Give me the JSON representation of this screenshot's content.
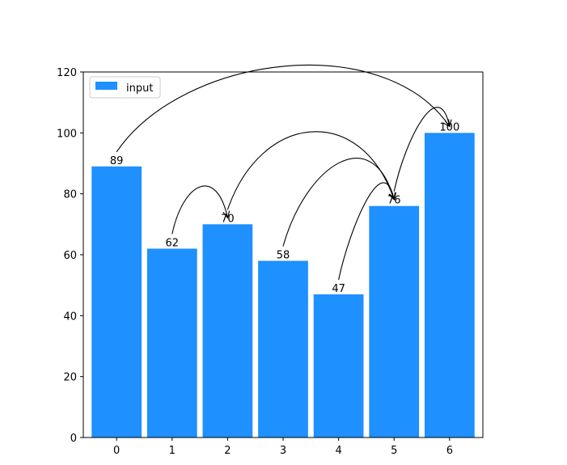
{
  "chart_data": {
    "type": "bar",
    "categories": [
      "0",
      "1",
      "2",
      "3",
      "4",
      "5",
      "6"
    ],
    "series": [
      {
        "name": "input",
        "values": [
          89,
          62,
          70,
          58,
          47,
          76,
          100
        ],
        "color": "#1e90ff"
      }
    ],
    "data_labels": [
      "89",
      "62",
      "70",
      "58",
      "47",
      "76",
      "100"
    ],
    "yticks": [
      "0",
      "20",
      "40",
      "60",
      "80",
      "100",
      "120"
    ],
    "ylim": [
      0,
      120
    ],
    "grid": false,
    "legend": {
      "position": "top-left",
      "entries": [
        "input"
      ]
    },
    "arrows": [
      {
        "from": 0,
        "to": 6
      },
      {
        "from": 1,
        "to": 2
      },
      {
        "from": 2,
        "to": 5
      },
      {
        "from": 3,
        "to": 5
      },
      {
        "from": 4,
        "to": 5
      },
      {
        "from": 5,
        "to": 6
      }
    ]
  }
}
